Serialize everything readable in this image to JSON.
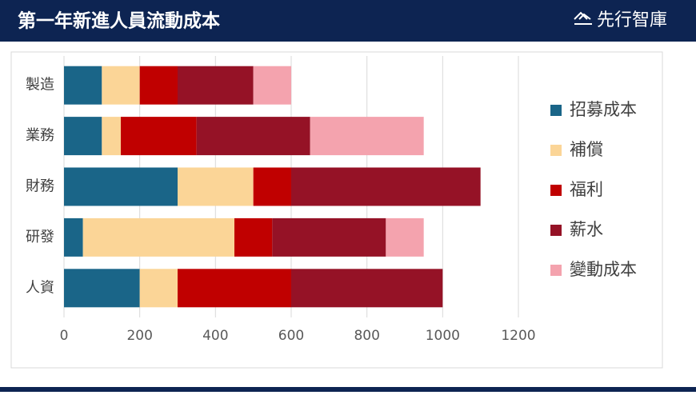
{
  "header": {
    "title": "第一年新進人員流動成本",
    "logo": "先行智庫"
  },
  "chart_data": {
    "type": "stacked-barh",
    "categories": [
      "製造",
      "業務",
      "財務",
      "研發",
      "人資"
    ],
    "series": [
      {
        "name": "招募成本",
        "color": "#1a6588",
        "values": [
          100,
          100,
          300,
          50,
          200
        ]
      },
      {
        "name": "補償",
        "color": "#fbd597",
        "values": [
          100,
          50,
          200,
          400,
          100
        ]
      },
      {
        "name": "福利",
        "color": "#c00000",
        "values": [
          100,
          200,
          100,
          100,
          300
        ]
      },
      {
        "name": "薪水",
        "color": "#951226",
        "values": [
          200,
          300,
          500,
          300,
          400
        ]
      },
      {
        "name": "變動成本",
        "color": "#f4a3ae",
        "values": [
          100,
          300,
          0,
          100,
          0
        ]
      }
    ],
    "xlim": [
      0,
      1200
    ],
    "xticks": [
      0,
      200,
      400,
      600,
      800,
      1000,
      1200
    ],
    "grid": true
  }
}
